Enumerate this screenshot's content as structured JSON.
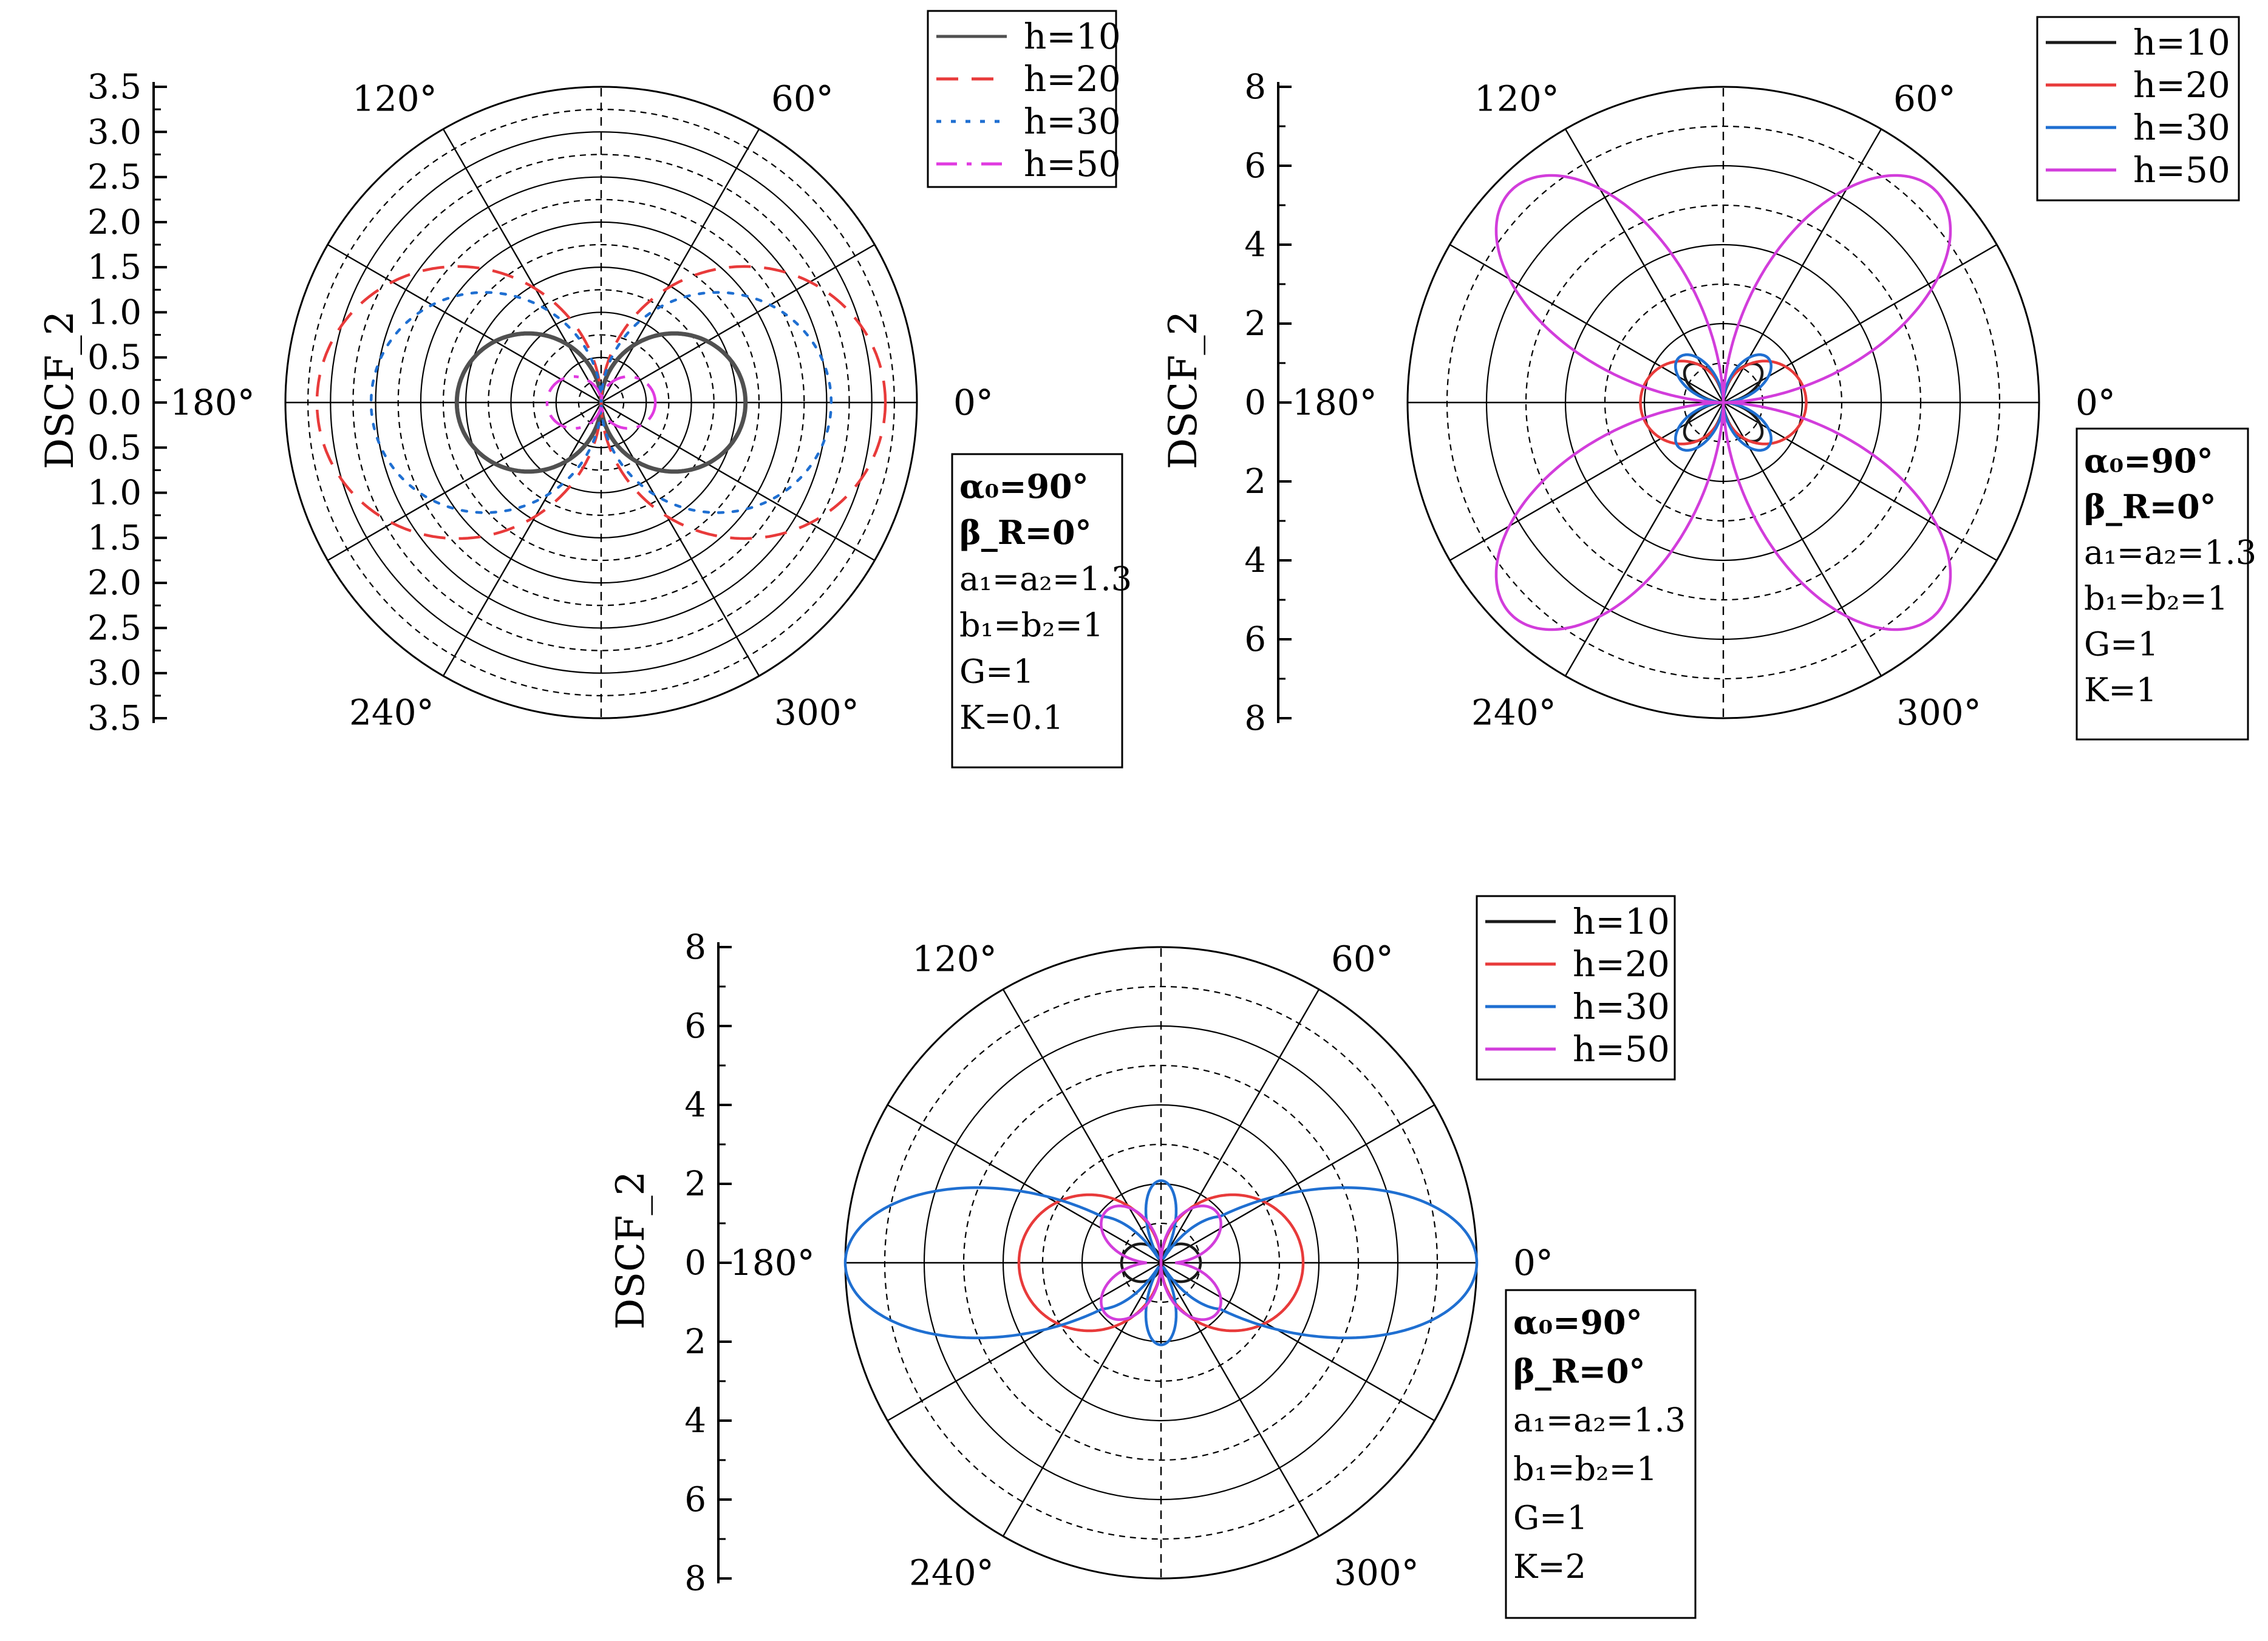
{
  "chart_data": [
    {
      "type": "polar-line",
      "panel": "top-left",
      "ylabel": "DSCF_2",
      "rlim": [
        0,
        3.5
      ],
      "radial_ticks": [
        "0.0",
        "0.5",
        "1.0",
        "1.5",
        "2.0",
        "2.5",
        "3.0",
        "3.5"
      ],
      "angle_labels": [
        "0°",
        "60°",
        "120°",
        "180°",
        "240°",
        "300°"
      ],
      "legend_placement": "top-right",
      "series": [
        {
          "name": "h=10",
          "color": "#505050",
          "dash": "solid",
          "shape": "lobes2",
          "max": 1.6
        },
        {
          "name": "h=20",
          "color": "#e83a3a",
          "dash": "dashed",
          "shape": "lobes2",
          "max": 3.15
        },
        {
          "name": "h=30",
          "color": "#1f6fd1",
          "dash": "dotted",
          "shape": "lobes2",
          "max": 2.55
        },
        {
          "name": "h=50",
          "color": "#e03ae0",
          "dash": "dashdot",
          "shape": "lobes2",
          "max": 0.6
        }
      ],
      "params": [
        "α₀=90°",
        "β_R=0°",
        "a₁=a₂=1.3",
        "b₁=b₂=1",
        "G=1",
        "K=0.1"
      ]
    },
    {
      "type": "polar-line",
      "panel": "top-right",
      "ylabel": "DSCF_2",
      "rlim": [
        0,
        8
      ],
      "radial_ticks": [
        "0",
        "2",
        "4",
        "6",
        "8"
      ],
      "angle_labels": [
        "0°",
        "60°",
        "120°",
        "180°",
        "240°",
        "300°"
      ],
      "legend_placement": "top-right",
      "series": [
        {
          "name": "h=10",
          "color": "#1a1a1a",
          "dash": "solid",
          "shape": "lobes4",
          "max": 1.3
        },
        {
          "name": "h=20",
          "color": "#e83a3a",
          "dash": "solid",
          "shape": "lobes2plus",
          "max": 2.1
        },
        {
          "name": "h=30",
          "color": "#1f6fd1",
          "dash": "solid",
          "shape": "lobes4",
          "max": 1.6
        },
        {
          "name": "h=50",
          "color": "#d23ddb",
          "dash": "solid",
          "shape": "lobes4",
          "max": 7.6
        }
      ],
      "params": [
        "α₀=90°",
        "β_R=0°",
        "a₁=a₂=1.3",
        "b₁=b₂=1",
        "G=1",
        "K=1"
      ]
    },
    {
      "type": "polar-line",
      "panel": "bottom",
      "ylabel": "DSCF_2",
      "rlim": [
        0,
        8
      ],
      "radial_ticks": [
        "0",
        "2",
        "4",
        "6",
        "8"
      ],
      "angle_labels": [
        "0°",
        "60°",
        "120°",
        "180°",
        "240°",
        "300°"
      ],
      "legend_placement": "top-right",
      "series": [
        {
          "name": "h=10",
          "color": "#1a1a1a",
          "dash": "solid",
          "shape": "lobes2",
          "max": 1.0
        },
        {
          "name": "h=20",
          "color": "#e83a3a",
          "dash": "solid",
          "shape": "lobes2",
          "max": 3.6
        },
        {
          "name": "h=30",
          "color": "#1f6fd1",
          "dash": "solid",
          "shape": "multi",
          "max": 8.0
        },
        {
          "name": "h=50",
          "color": "#d23ddb",
          "dash": "solid",
          "shape": "lobes4small",
          "max": 3.0
        }
      ],
      "params": [
        "α₀=90°",
        "β_R=0°",
        "a₁=a₂=1.3",
        "b₁=b₂=1",
        "G=1",
        "K=2"
      ]
    }
  ]
}
